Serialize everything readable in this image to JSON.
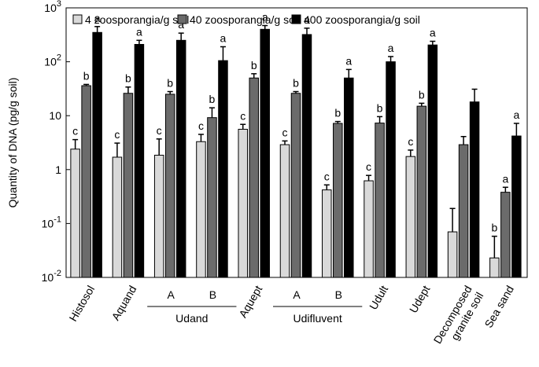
{
  "chart_data": {
    "type": "bar",
    "ylabel": "Quantity of DNA (pg/g soil)",
    "yscale": "log",
    "ylim": [
      0.01,
      1000
    ],
    "yticks": [
      {
        "value": 0.01,
        "base": "10",
        "exp": "-2"
      },
      {
        "value": 0.1,
        "base": "10",
        "exp": "-1"
      },
      {
        "value": 1,
        "base": "1",
        "exp": ""
      },
      {
        "value": 10,
        "base": "10",
        "exp": ""
      },
      {
        "value": 100,
        "base": "10",
        "exp": "2"
      },
      {
        "value": 1000,
        "base": "10",
        "exp": "3"
      }
    ],
    "legend_position": "top",
    "series": [
      {
        "name": "4 zoosporangia/g soil",
        "color": "#d9d9d9",
        "values": [
          2.4,
          1.7,
          1.85,
          3.3,
          5.6,
          2.9,
          0.42,
          0.62,
          1.75,
          0.07,
          0.023
        ],
        "errors": [
          3.6,
          3.1,
          3.7,
          4.5,
          6.9,
          3.4,
          0.52,
          0.78,
          2.3,
          0.19,
          0.058
        ],
        "labels": [
          "c",
          "c",
          "c",
          "c",
          "c",
          "c",
          "c",
          "c",
          "c",
          "",
          "b"
        ]
      },
      {
        "name": "40 zoosporangia/g soil",
        "color": "#6b6b6b",
        "values": [
          36,
          26,
          25,
          9.2,
          50,
          26,
          7.2,
          7.3,
          15,
          2.9,
          0.38
        ],
        "errors": [
          38,
          34,
          28,
          14,
          60,
          28,
          7.8,
          9.6,
          17,
          4.1,
          0.47
        ],
        "labels": [
          "b",
          "b",
          "b",
          "b",
          "b",
          "b",
          "b",
          "b",
          "b",
          "",
          "a"
        ]
      },
      {
        "name": "400 zoosporangia/g soil",
        "color": "#000000",
        "values": [
          350,
          210,
          250,
          105,
          400,
          320,
          50,
          100,
          205,
          18,
          4.2
        ],
        "errors": [
          450,
          250,
          340,
          190,
          470,
          420,
          72,
          125,
          240,
          31,
          7.2
        ],
        "labels": [
          "a",
          "a",
          "a",
          "a",
          "a",
          "a",
          "a",
          "a",
          "a",
          "",
          "a"
        ]
      }
    ],
    "categories": [
      {
        "label": "Histosol",
        "lines": [
          "Histosol"
        ]
      },
      {
        "label": "Aquand",
        "lines": [
          "Aquand"
        ]
      },
      {
        "label": "A",
        "lines": [
          "A"
        ]
      },
      {
        "label": "B",
        "lines": [
          "B"
        ]
      },
      {
        "label": "Aquept",
        "lines": [
          "Aquept"
        ]
      },
      {
        "label": "A",
        "lines": [
          "A"
        ]
      },
      {
        "label": "B",
        "lines": [
          "B"
        ]
      },
      {
        "label": "Udult",
        "lines": [
          "Udult"
        ]
      },
      {
        "label": "Udept",
        "lines": [
          "Udept"
        ]
      },
      {
        "label": "Decomposed granite soil",
        "lines": [
          "Decomposed",
          "granite soil"
        ]
      },
      {
        "label": "Sea sand",
        "lines": [
          "Sea sand"
        ]
      }
    ],
    "groups": [
      {
        "label": "Udand",
        "members": [
          2,
          3
        ]
      },
      {
        "label": "Udifluvent",
        "members": [
          5,
          6
        ]
      }
    ]
  }
}
